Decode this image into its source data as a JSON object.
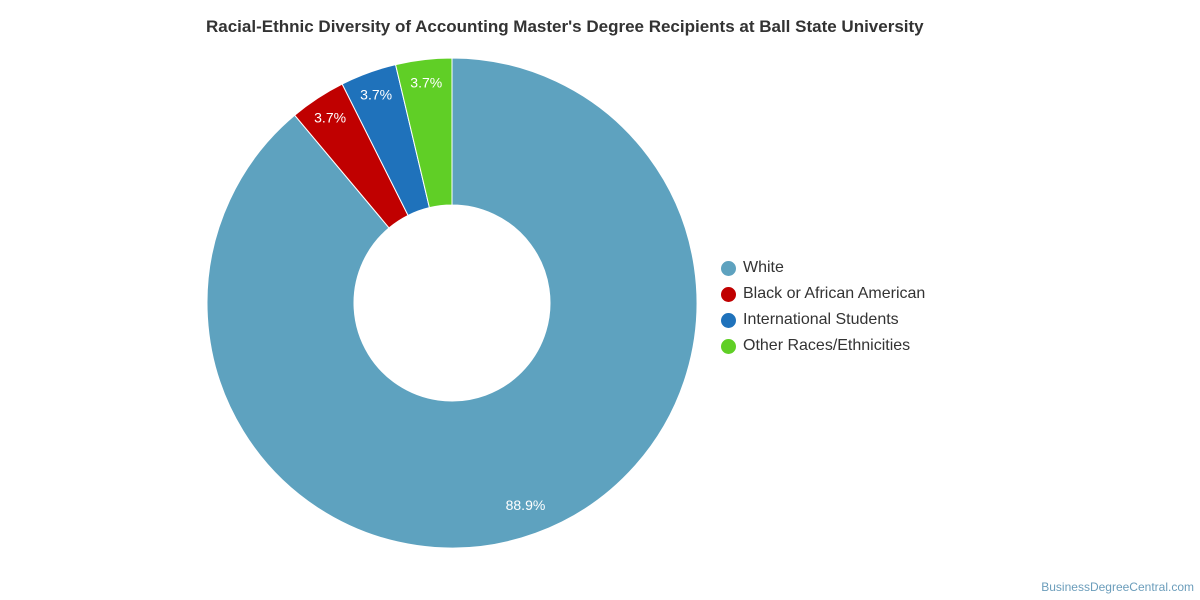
{
  "chart_data": {
    "type": "pie",
    "variant": "donut",
    "title": "Racial-Ethnic Diversity of Accounting Master's Degree Recipients at Ball State University",
    "categories": [
      "White",
      "Black or African American",
      "International Students",
      "Other Races/Ethnicities"
    ],
    "values": [
      88.9,
      3.7,
      3.7,
      3.7
    ],
    "value_labels": [
      "88.9%",
      "3.7%",
      "3.7%",
      "3.7%"
    ],
    "colors": [
      "#5ea2bf",
      "#c00000",
      "#1f72bb",
      "#60cf26"
    ],
    "legend_position": "right"
  },
  "credit": "BusinessDegreeCentral.com"
}
